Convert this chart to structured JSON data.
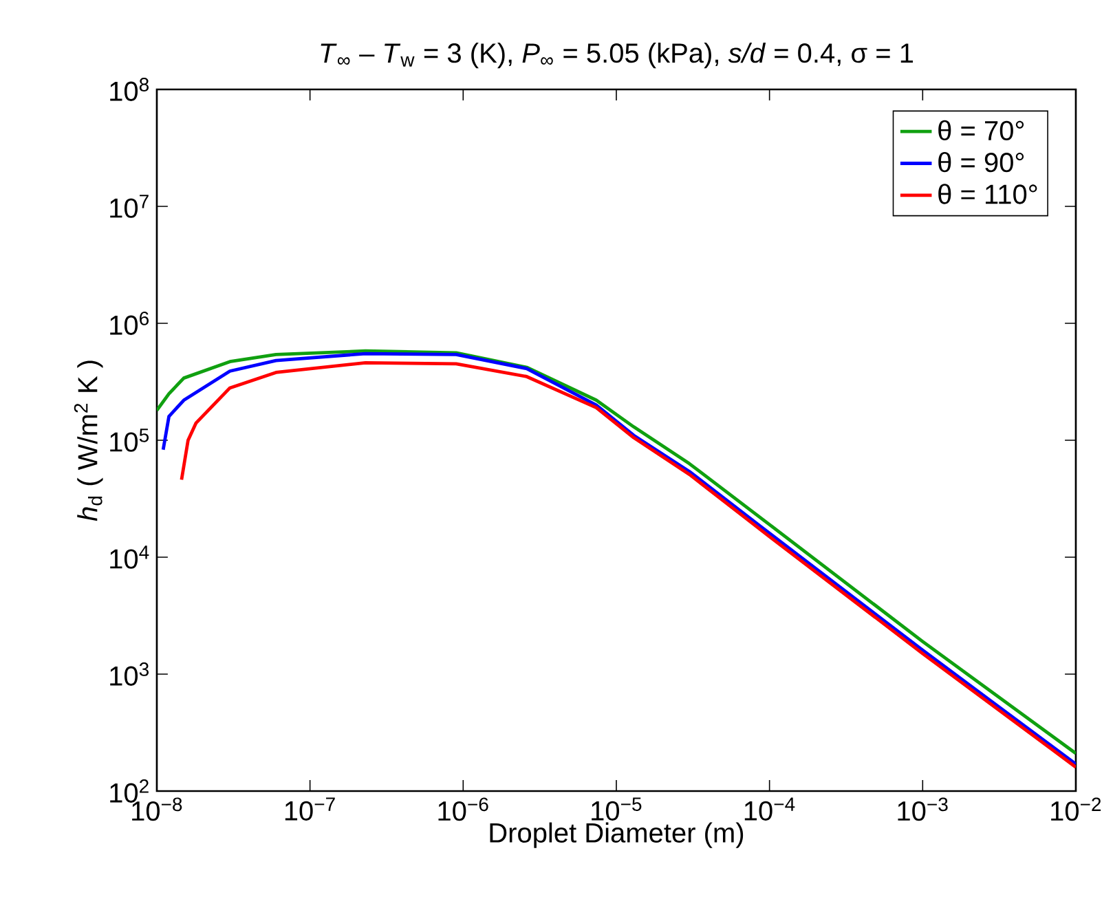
{
  "chart_data": {
    "type": "line",
    "title": "*T*$_{∞}$ – *T*$_{w}$ = 3 (K),  *P*$_{∞}$ = 5.05 (kPa),  *s/d* = 0.4,  σ = 1",
    "xlabel": "Droplet Diameter (m)",
    "ylabel": "*h*$_{d}$ ( W/m$^{2}$ K )",
    "log": "xy",
    "xlim": [
      1e-08,
      0.01
    ],
    "ylim": [
      100,
      100000000
    ],
    "xticks": [
      {
        "value": 1e-08,
        "label": "10$^{−8}$"
      },
      {
        "value": 1e-07,
        "label": "10$^{−7}$"
      },
      {
        "value": 1e-06,
        "label": "10$^{−6}$"
      },
      {
        "value": 1e-05,
        "label": "10$^{−5}$"
      },
      {
        "value": 0.0001,
        "label": "10$^{−4}$"
      },
      {
        "value": 0.001,
        "label": "10$^{−3}$"
      },
      {
        "value": 0.01,
        "label": "10$^{−2}$"
      }
    ],
    "yticks": [
      {
        "value": 100,
        "label": "10$^{2}$"
      },
      {
        "value": 1000,
        "label": "10$^{3}$"
      },
      {
        "value": 10000,
        "label": "10$^{4}$"
      },
      {
        "value": 100000,
        "label": "10$^{5}$"
      },
      {
        "value": 1000000,
        "label": "10$^{6}$"
      },
      {
        "value": 10000000,
        "label": "10$^{7}$"
      },
      {
        "value": 100000000,
        "label": "10$^{8}$"
      }
    ],
    "legend": "top right",
    "series": [
      {
        "name": "θ = 70°",
        "color": "#10a010",
        "x": [
          1e-08,
          1.2e-08,
          1.5e-08,
          3e-08,
          6e-08,
          2.3e-07,
          9e-07,
          2.6e-06,
          7.4e-06,
          1.3e-05,
          3e-05,
          0.0001,
          0.001,
          0.01
        ],
        "values": [
          180000,
          250000,
          340000,
          470000,
          540000,
          580000,
          560000,
          420000,
          220000,
          130000,
          63000,
          19000,
          1900,
          210
        ]
      },
      {
        "name": "θ = 90°",
        "color": "#0000ff",
        "x": [
          1.1e-08,
          1.2e-08,
          1.5e-08,
          3e-08,
          6e-08,
          2.3e-07,
          9e-07,
          2.6e-06,
          7.4e-06,
          1.3e-05,
          3e-05,
          0.0001,
          0.001,
          0.01
        ],
        "values": [
          83000,
          160000,
          220000,
          390000,
          480000,
          550000,
          540000,
          410000,
          200000,
          110000,
          54000,
          16000,
          1600,
          170
        ]
      },
      {
        "name": "θ = 110°",
        "color": "#ff0000",
        "x": [
          1.45e-08,
          1.6e-08,
          1.8e-08,
          3e-08,
          6e-08,
          2.3e-07,
          9e-07,
          2.6e-06,
          7.4e-06,
          1.3e-05,
          3e-05,
          0.0001,
          0.001,
          0.01
        ],
        "values": [
          46000,
          100000,
          140000,
          280000,
          380000,
          460000,
          450000,
          350000,
          190000,
          105000,
          51000,
          15000,
          1500,
          160
        ]
      }
    ]
  }
}
